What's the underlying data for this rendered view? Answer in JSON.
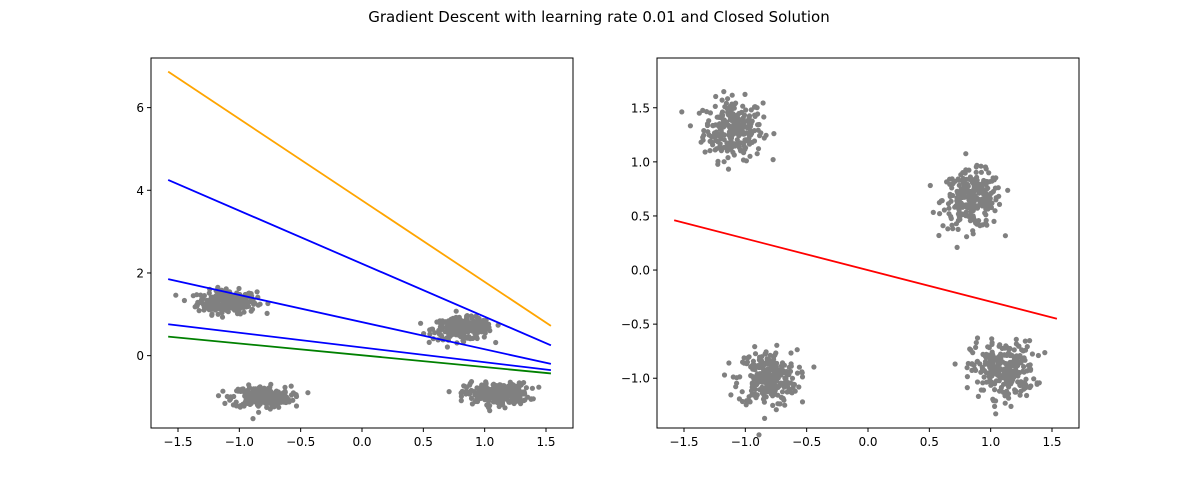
{
  "figure": {
    "suptitle": "Gradient Descent with learning rate 0.01 and Closed Solution"
  },
  "chart_data": [
    {
      "type": "scatter",
      "title": "",
      "xlabel": "",
      "ylabel": "",
      "xlim": [
        -1.72,
        1.72
      ],
      "ylim": [
        -1.75,
        7.2
      ],
      "xticks": [
        -1.5,
        -1.0,
        -0.5,
        0.0,
        0.5,
        1.0,
        1.5
      ],
      "xtick_labels": [
        "−1.5",
        "−1.0",
        "−0.5",
        "0.0",
        "0.5",
        "1.0",
        "1.5"
      ],
      "yticks": [
        0,
        2,
        4,
        6
      ],
      "ytick_labels": [
        "0",
        "2",
        "4",
        "6"
      ],
      "grid": false,
      "point_color": "#808080",
      "clusters": [
        {
          "center": [
            -1.1,
            1.3
          ],
          "spread": [
            0.12,
            0.14
          ],
          "count": 260
        },
        {
          "center": [
            0.82,
            0.65
          ],
          "spread": [
            0.12,
            0.13
          ],
          "count": 260
        },
        {
          "center": [
            -0.82,
            -1.0
          ],
          "spread": [
            0.12,
            0.13
          ],
          "count": 260
        },
        {
          "center": [
            1.1,
            -0.92
          ],
          "spread": [
            0.13,
            0.13
          ],
          "count": 260
        }
      ],
      "lines": [
        {
          "color": "#ffa500",
          "x": [
            -1.58,
            1.54
          ],
          "y": [
            6.87,
            0.72
          ]
        },
        {
          "color": "#0000ff",
          "x": [
            -1.58,
            1.54
          ],
          "y": [
            4.25,
            0.25
          ]
        },
        {
          "color": "#0000ff",
          "x": [
            -1.58,
            1.54
          ],
          "y": [
            1.85,
            -0.2
          ]
        },
        {
          "color": "#0000ff",
          "x": [
            -1.58,
            1.54
          ],
          "y": [
            0.76,
            -0.35
          ]
        },
        {
          "color": "#008000",
          "x": [
            -1.58,
            1.54
          ],
          "y": [
            0.46,
            -0.43
          ]
        }
      ]
    },
    {
      "type": "scatter",
      "title": "",
      "xlabel": "",
      "ylabel": "",
      "xlim": [
        -1.72,
        1.72
      ],
      "ylim": [
        -1.46,
        1.96
      ],
      "xticks": [
        -1.5,
        -1.0,
        -0.5,
        0.0,
        0.5,
        1.0,
        1.5
      ],
      "xtick_labels": [
        "−1.5",
        "−1.0",
        "−0.5",
        "0.0",
        "0.5",
        "1.0",
        "1.5"
      ],
      "yticks": [
        -1.0,
        -0.5,
        0.0,
        0.5,
        1.0,
        1.5
      ],
      "ytick_labels": [
        "−1.0",
        "−0.5",
        "0.0",
        "0.5",
        "1.0",
        "1.5"
      ],
      "grid": false,
      "point_color": "#808080",
      "clusters": [
        {
          "center": [
            -1.1,
            1.3
          ],
          "spread": [
            0.12,
            0.14
          ],
          "count": 260
        },
        {
          "center": [
            0.85,
            0.65
          ],
          "spread": [
            0.12,
            0.13
          ],
          "count": 260
        },
        {
          "center": [
            -0.82,
            -1.0
          ],
          "spread": [
            0.12,
            0.13
          ],
          "count": 260
        },
        {
          "center": [
            1.1,
            -0.92
          ],
          "spread": [
            0.13,
            0.13
          ],
          "count": 260
        }
      ],
      "lines": [
        {
          "color": "#ff0000",
          "x": [
            -1.58,
            1.54
          ],
          "y": [
            0.46,
            -0.45
          ]
        }
      ]
    }
  ]
}
